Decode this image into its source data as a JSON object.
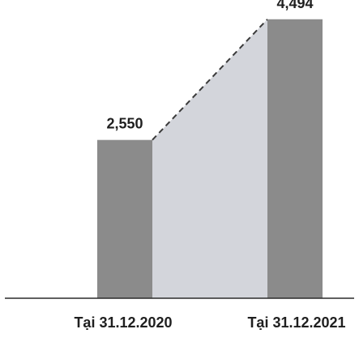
{
  "chart_data": {
    "type": "bar",
    "title": "",
    "xlabel": "",
    "ylabel": "",
    "categories": [
      "Tại 31.12.2020",
      "Tại 31.12.2021"
    ],
    "values": [
      2550,
      4494
    ],
    "data_labels": [
      "2,550",
      "4,494"
    ],
    "ylim": [
      0,
      4700
    ],
    "grid": false,
    "legend": "none",
    "connector": "dashed line with shaded area between bar tops",
    "colors": {
      "bar": "#8b8b8b",
      "connector_area": "#d3d5db",
      "connector_line": "#3a3a3a",
      "baseline": "#2b2b2b",
      "text": "#1f1f1f"
    }
  }
}
